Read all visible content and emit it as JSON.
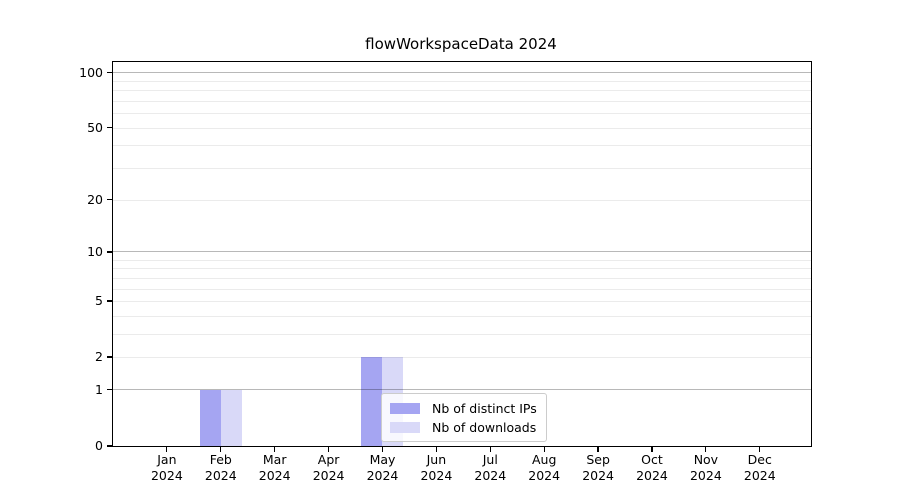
{
  "chart_data": {
    "type": "bar",
    "title": "flowWorkspaceData 2024",
    "y_scale": "log1p",
    "ylim": [
      0,
      114
    ],
    "grid": "on",
    "legend_position": "lower-center-inside",
    "categories": [
      {
        "month": "Jan",
        "year": "2024"
      },
      {
        "month": "Feb",
        "year": "2024"
      },
      {
        "month": "Mar",
        "year": "2024"
      },
      {
        "month": "Apr",
        "year": "2024"
      },
      {
        "month": "May",
        "year": "2024"
      },
      {
        "month": "Jun",
        "year": "2024"
      },
      {
        "month": "Jul",
        "year": "2024"
      },
      {
        "month": "Aug",
        "year": "2024"
      },
      {
        "month": "Sep",
        "year": "2024"
      },
      {
        "month": "Oct",
        "year": "2024"
      },
      {
        "month": "Nov",
        "year": "2024"
      },
      {
        "month": "Dec",
        "year": "2024"
      }
    ],
    "series": [
      {
        "key": "distinct-ips",
        "name": "Nb of distinct IPs",
        "color": "#a5a5f2",
        "values": [
          0,
          1,
          0,
          0,
          2,
          0,
          0,
          0,
          0,
          0,
          0,
          0
        ]
      },
      {
        "key": "downloads",
        "name": "Nb of downloads",
        "color": "#d9d9f8",
        "values": [
          0,
          1,
          0,
          0,
          2,
          0,
          0,
          0,
          0,
          0,
          0,
          0
        ]
      }
    ],
    "y_ticks": [
      0,
      1,
      2,
      5,
      10,
      20,
      50,
      100
    ],
    "gridlines": {
      "major": [
        1,
        10,
        100
      ],
      "minor": [
        2,
        3,
        4,
        5,
        6,
        7,
        8,
        9,
        20,
        30,
        40,
        50,
        60,
        70,
        80,
        90
      ]
    },
    "colors": {
      "grid_major": "rgba(0,0,0,0.28)",
      "grid_minor": "rgba(0,0,0,0.08)",
      "spine": "#000000",
      "background": "#ffffff"
    }
  }
}
